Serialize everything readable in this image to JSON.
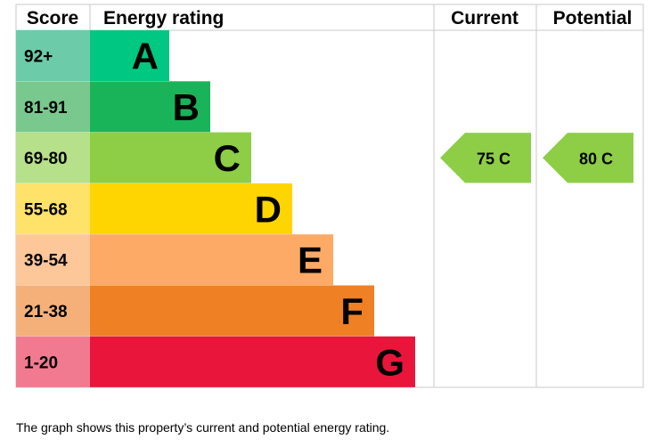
{
  "chart_data": {
    "type": "bar",
    "title": "Energy rating",
    "headers": {
      "score": "Score",
      "rating": "Energy rating",
      "current": "Current",
      "potential": "Potential"
    },
    "bands": [
      {
        "score": "92+",
        "letter": "A",
        "color": "#00c781",
        "score_color": "#6ccba9"
      },
      {
        "score": "81-91",
        "letter": "B",
        "color": "#19b459",
        "score_color": "#79c98f"
      },
      {
        "score": "69-80",
        "letter": "C",
        "color": "#8dce46",
        "score_color": "#b6e08a"
      },
      {
        "score": "55-68",
        "letter": "D",
        "color": "#ffd500",
        "score_color": "#ffe26a"
      },
      {
        "score": "39-54",
        "letter": "E",
        "color": "#fcaa65",
        "score_color": "#fdc79a"
      },
      {
        "score": "21-38",
        "letter": "F",
        "color": "#ef8023",
        "score_color": "#f5b07a"
      },
      {
        "score": "1-20",
        "letter": "G",
        "color": "#e9153b",
        "score_color": "#f17a91"
      }
    ],
    "current": {
      "value": 75,
      "letter": "C",
      "label": "75  C",
      "color": "#8dce46"
    },
    "potential": {
      "value": 80,
      "letter": "C",
      "label": "80  C",
      "color": "#8dce46"
    }
  },
  "caption": "The graph shows this property’s current and potential energy rating."
}
